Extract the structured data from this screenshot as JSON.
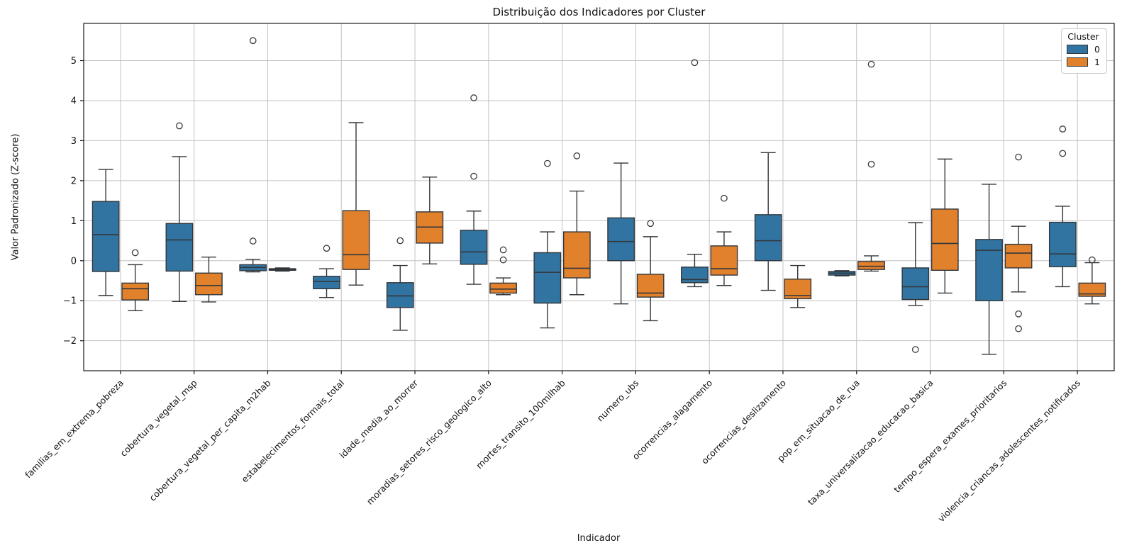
{
  "chart_data": {
    "type": "boxplot",
    "title": "Distribuição dos Indicadores por Cluster",
    "xlabel": "Indicador",
    "ylabel": "Valor Padronizado (Z-score)",
    "ylim": [
      -2.75,
      5.93
    ],
    "yticks": [
      -2,
      -1,
      0,
      1,
      2,
      3,
      4,
      5
    ],
    "ytick_labels": [
      "−2",
      "−1",
      "0",
      "1",
      "2",
      "3",
      "4",
      "5"
    ],
    "grid": true,
    "edge_color": "#32373c",
    "flier_color": "#3a3a3a",
    "grid_color": "#c3c3c3",
    "legend": {
      "title": "Cluster",
      "position": "upper right"
    },
    "categories": [
      "familias_em_extrema_pobreza",
      "cobertura_vegetal_msp",
      "cobertura_vegetal_per_capita_m2hab",
      "estabelecimentos_formais_total",
      "idade_media_ao_morrer",
      "moradias_setores_risco_geologico_alto",
      "mortes_transito_100milhab",
      "numero_ubs",
      "ocorrencias_alagamento",
      "ocorrencias_deslizamento",
      "pop_em_situacao_de_rua",
      "taxa_universalizacao_educacao_basica",
      "tempo_espera_exames_prioritarios",
      "violencia_criancas_adolescentes_notificados"
    ],
    "series": [
      {
        "name": "0",
        "color": "#3274a1",
        "boxes": [
          {
            "whislo": -0.87,
            "q1": -0.27,
            "med": 0.65,
            "q3": 1.48,
            "whishi": 2.28,
            "outliers": []
          },
          {
            "whislo": -1.02,
            "q1": -0.26,
            "med": 0.52,
            "q3": 0.93,
            "whishi": 2.6,
            "outliers": [
              3.37
            ]
          },
          {
            "whislo": -0.28,
            "q1": -0.25,
            "med": -0.17,
            "q3": -0.1,
            "whishi": 0.03,
            "outliers": [
              0.49,
              5.5
            ]
          },
          {
            "whislo": -0.92,
            "q1": -0.7,
            "med": -0.52,
            "q3": -0.39,
            "whishi": -0.2,
            "outliers": [
              0.31
            ]
          },
          {
            "whislo": -1.74,
            "q1": -1.17,
            "med": -0.88,
            "q3": -0.55,
            "whishi": -0.12,
            "outliers": [
              0.5
            ]
          },
          {
            "whislo": -0.59,
            "q1": -0.09,
            "med": 0.22,
            "q3": 0.76,
            "whishi": 1.24,
            "outliers": [
              2.11,
              4.07
            ]
          },
          {
            "whislo": -1.68,
            "q1": -1.06,
            "med": -0.29,
            "q3": 0.2,
            "whishi": 0.72,
            "outliers": [
              2.43
            ]
          },
          {
            "whislo": -1.08,
            "q1": 0.0,
            "med": 0.48,
            "q3": 1.07,
            "whishi": 2.44,
            "outliers": []
          },
          {
            "whislo": -0.65,
            "q1": -0.55,
            "med": -0.47,
            "q3": -0.16,
            "whishi": 0.16,
            "outliers": [
              4.95
            ]
          },
          {
            "whislo": -0.74,
            "q1": 0.0,
            "med": 0.5,
            "q3": 1.15,
            "whishi": 2.7,
            "outliers": []
          },
          {
            "whislo": -0.38,
            "q1": -0.36,
            "med": -0.31,
            "q3": -0.27,
            "whishi": -0.25,
            "outliers": []
          },
          {
            "whislo": -1.12,
            "q1": -0.97,
            "med": -0.65,
            "q3": -0.18,
            "whishi": 0.95,
            "outliers": [
              -2.22
            ]
          },
          {
            "whislo": -2.34,
            "q1": -1.0,
            "med": 0.26,
            "q3": 0.53,
            "whishi": 1.91,
            "outliers": []
          },
          {
            "whislo": -0.65,
            "q1": -0.15,
            "med": 0.17,
            "q3": 0.96,
            "whishi": 1.36,
            "outliers": [
              2.68,
              3.29
            ]
          }
        ]
      },
      {
        "name": "1",
        "color": "#e1812c",
        "boxes": [
          {
            "whislo": -1.25,
            "q1": -0.98,
            "med": -0.7,
            "q3": -0.56,
            "whishi": -0.1,
            "outliers": [
              0.2
            ]
          },
          {
            "whislo": -1.03,
            "q1": -0.85,
            "med": -0.62,
            "q3": -0.31,
            "whishi": 0.09,
            "outliers": []
          },
          {
            "whislo": -0.26,
            "q1": -0.24,
            "med": -0.22,
            "q3": -0.2,
            "whishi": -0.18,
            "outliers": []
          },
          {
            "whislo": -0.61,
            "q1": -0.22,
            "med": 0.15,
            "q3": 1.25,
            "whishi": 3.45,
            "outliers": []
          },
          {
            "whislo": -0.08,
            "q1": 0.44,
            "med": 0.84,
            "q3": 1.22,
            "whishi": 2.09,
            "outliers": []
          },
          {
            "whislo": -0.85,
            "q1": -0.81,
            "med": -0.71,
            "q3": -0.56,
            "whishi": -0.43,
            "outliers": [
              0.02,
              0.27
            ]
          },
          {
            "whislo": -0.85,
            "q1": -0.43,
            "med": -0.19,
            "q3": 0.72,
            "whishi": 1.74,
            "outliers": [
              2.62
            ]
          },
          {
            "whislo": -1.5,
            "q1": -0.91,
            "med": -0.81,
            "q3": -0.34,
            "whishi": 0.6,
            "outliers": [
              0.93
            ]
          },
          {
            "whislo": -0.62,
            "q1": -0.36,
            "med": -0.2,
            "q3": 0.37,
            "whishi": 0.72,
            "outliers": [
              1.56
            ]
          },
          {
            "whislo": -1.17,
            "q1": -0.95,
            "med": -0.87,
            "q3": -0.46,
            "whishi": -0.12,
            "outliers": []
          },
          {
            "whislo": -0.26,
            "q1": -0.22,
            "med": -0.14,
            "q3": -0.02,
            "whishi": 0.12,
            "outliers": [
              2.41,
              4.91
            ]
          },
          {
            "whislo": -0.81,
            "q1": -0.24,
            "med": 0.43,
            "q3": 1.29,
            "whishi": 2.54,
            "outliers": []
          },
          {
            "whislo": -0.78,
            "q1": -0.18,
            "med": 0.19,
            "q3": 0.41,
            "whishi": 0.86,
            "outliers": [
              -1.7,
              -1.33,
              2.59
            ]
          },
          {
            "whislo": -1.08,
            "q1": -0.89,
            "med": -0.83,
            "q3": -0.56,
            "whishi": -0.05,
            "outliers": [
              0.02
            ]
          }
        ]
      }
    ]
  }
}
